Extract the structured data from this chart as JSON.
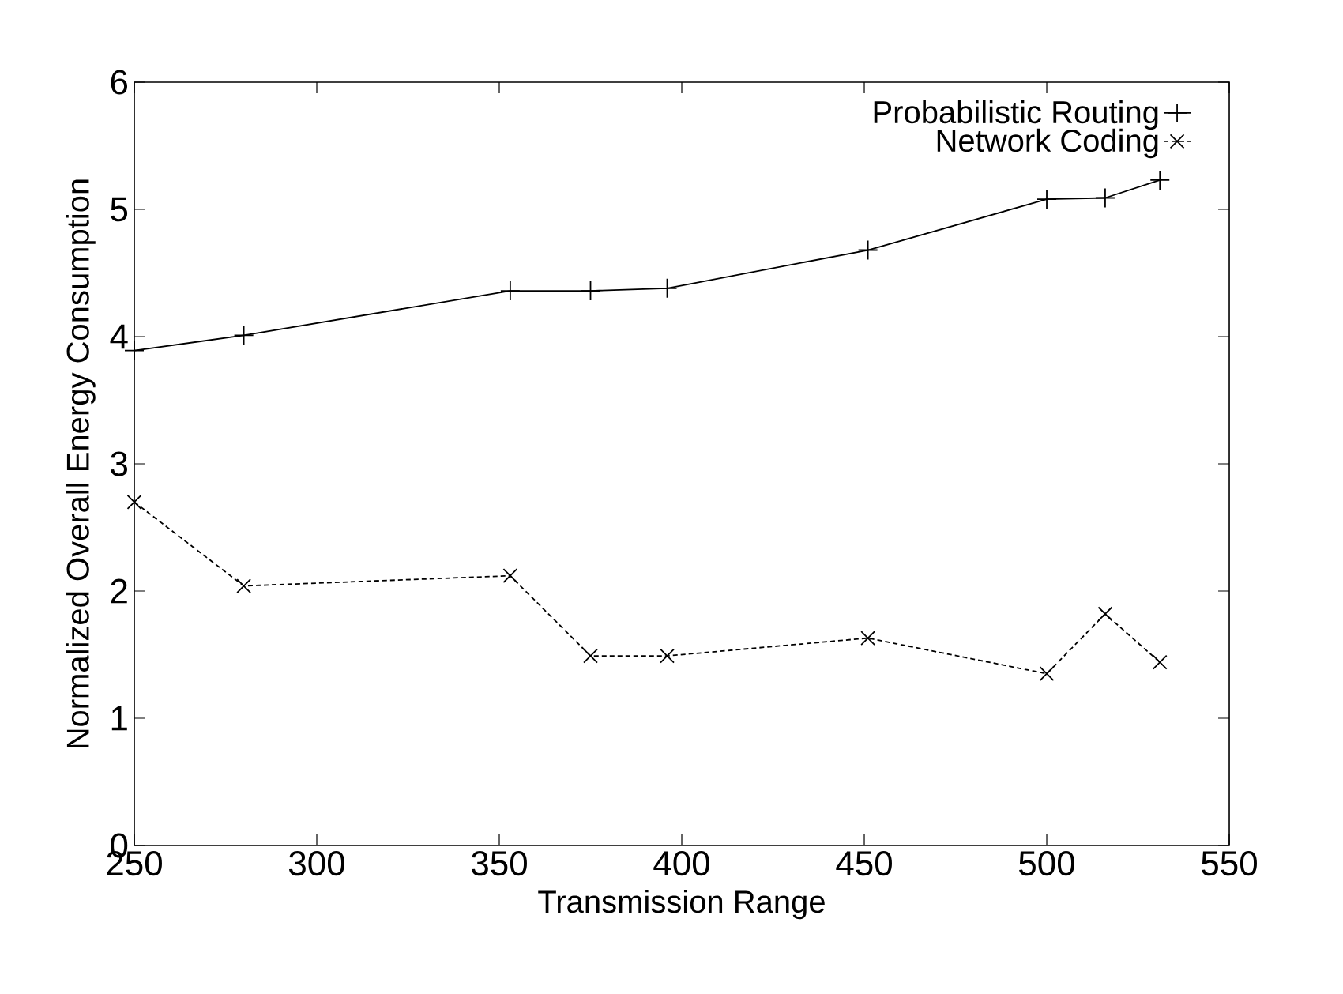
{
  "chart_data": {
    "type": "line",
    "xlabel": "Transmission Range",
    "ylabel": "Normalized Overall Energy Consumption",
    "x": [
      250,
      280,
      353,
      375,
      396,
      451,
      500,
      516,
      531
    ],
    "series": [
      {
        "name": "Probabilistic Routing",
        "color": "#000000",
        "marker": "plus",
        "line_style": "solid",
        "values": [
          3.89,
          4.01,
          4.36,
          4.36,
          4.38,
          4.68,
          5.08,
          5.09,
          5.23
        ]
      },
      {
        "name": "Network Coding",
        "color": "#000000",
        "marker": "cross",
        "line_style": "dashed",
        "values": [
          2.7,
          2.04,
          2.12,
          1.49,
          1.49,
          1.63,
          1.35,
          1.82,
          1.44
        ]
      }
    ],
    "xlim": [
      250,
      550
    ],
    "xticks": [
      250,
      300,
      350,
      400,
      450,
      500,
      550
    ],
    "ylim": [
      0,
      6
    ],
    "yticks": [
      0,
      1,
      2,
      3,
      4,
      5,
      6
    ],
    "grid": false,
    "legend": "top right"
  }
}
